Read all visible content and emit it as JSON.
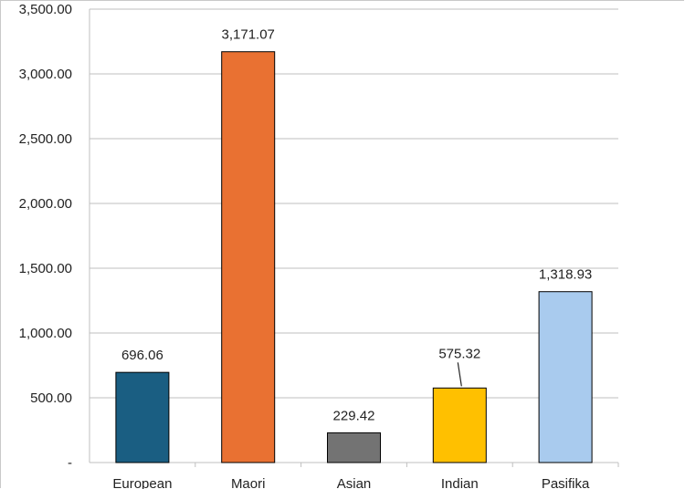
{
  "chart_data": {
    "type": "bar",
    "title": "",
    "xlabel": "",
    "ylabel": "",
    "categories": [
      "European",
      "Maori",
      "Asian",
      "Indian",
      "Pasifika"
    ],
    "values": [
      696.06,
      3171.07,
      229.42,
      575.32,
      1318.93
    ],
    "value_labels": [
      "696.06",
      "3,171.07",
      "229.42",
      "575.32",
      "1,318.93"
    ],
    "colors": [
      "#1a5e82",
      "#e97132",
      "#737373",
      "#ffc000",
      "#a9cbee"
    ],
    "ylim": [
      0,
      3500
    ],
    "yticks": [
      0,
      500,
      1000,
      1500,
      2000,
      2500,
      3000,
      3500
    ],
    "ytick_labels": [
      "-",
      "500.00",
      "1,000.00",
      "1,500.00",
      "2,000.00",
      "2,500.00",
      "3,000.00",
      "3,500.00"
    ],
    "grid": true,
    "legend": "none"
  }
}
